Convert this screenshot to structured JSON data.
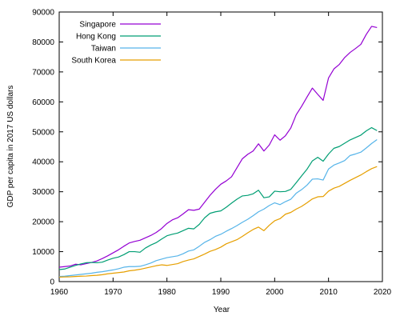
{
  "chart_data": {
    "type": "line",
    "title": "",
    "xlabel": "Year",
    "ylabel": "GDP per capita in 2017 US dollars",
    "xlim": [
      1960,
      2020
    ],
    "ylim": [
      0,
      90000
    ],
    "xticks": [
      1960,
      1970,
      1980,
      1990,
      2000,
      2010,
      2020
    ],
    "yticks": [
      0,
      10000,
      20000,
      30000,
      40000,
      50000,
      60000,
      70000,
      80000,
      90000
    ],
    "legend_position": "top-left",
    "grid": false,
    "series": [
      {
        "name": "Singapore",
        "color": "#9400d3",
        "points": [
          [
            1960,
            4800
          ],
          [
            1961,
            5000
          ],
          [
            1962,
            5200
          ],
          [
            1963,
            5800
          ],
          [
            1964,
            5600
          ],
          [
            1965,
            6000
          ],
          [
            1966,
            6400
          ],
          [
            1967,
            6900
          ],
          [
            1968,
            7700
          ],
          [
            1969,
            8600
          ],
          [
            1970,
            9600
          ],
          [
            1971,
            10600
          ],
          [
            1972,
            11800
          ],
          [
            1973,
            12900
          ],
          [
            1974,
            13400
          ],
          [
            1975,
            13800
          ],
          [
            1976,
            14600
          ],
          [
            1977,
            15400
          ],
          [
            1978,
            16400
          ],
          [
            1979,
            17700
          ],
          [
            1980,
            19400
          ],
          [
            1981,
            20600
          ],
          [
            1982,
            21300
          ],
          [
            1983,
            22600
          ],
          [
            1984,
            24000
          ],
          [
            1985,
            23800
          ],
          [
            1986,
            24200
          ],
          [
            1987,
            26500
          ],
          [
            1988,
            28800
          ],
          [
            1989,
            30800
          ],
          [
            1990,
            32500
          ],
          [
            1991,
            33600
          ],
          [
            1992,
            35000
          ],
          [
            1993,
            38000
          ],
          [
            1994,
            41000
          ],
          [
            1995,
            42500
          ],
          [
            1996,
            43600
          ],
          [
            1997,
            46000
          ],
          [
            1998,
            43600
          ],
          [
            1999,
            45600
          ],
          [
            2000,
            49000
          ],
          [
            2001,
            47200
          ],
          [
            2002,
            48700
          ],
          [
            2003,
            51300
          ],
          [
            2004,
            55700
          ],
          [
            2005,
            58500
          ],
          [
            2006,
            61600
          ],
          [
            2007,
            64600
          ],
          [
            2008,
            62500
          ],
          [
            2009,
            60500
          ],
          [
            2010,
            68000
          ],
          [
            2011,
            71000
          ],
          [
            2012,
            72500
          ],
          [
            2013,
            74800
          ],
          [
            2014,
            76500
          ],
          [
            2015,
            77800
          ],
          [
            2016,
            79200
          ],
          [
            2017,
            82500
          ],
          [
            2018,
            85200
          ],
          [
            2019,
            84800
          ]
        ]
      },
      {
        "name": "Hong Kong",
        "color": "#009e73",
        "points": [
          [
            1960,
            4000
          ],
          [
            1961,
            4200
          ],
          [
            1962,
            4800
          ],
          [
            1963,
            5400
          ],
          [
            1964,
            5900
          ],
          [
            1965,
            6300
          ],
          [
            1966,
            6400
          ],
          [
            1967,
            6300
          ],
          [
            1968,
            6500
          ],
          [
            1969,
            7200
          ],
          [
            1970,
            7800
          ],
          [
            1971,
            8200
          ],
          [
            1972,
            9000
          ],
          [
            1973,
            10000
          ],
          [
            1974,
            10000
          ],
          [
            1975,
            9800
          ],
          [
            1976,
            11200
          ],
          [
            1977,
            12200
          ],
          [
            1978,
            13000
          ],
          [
            1979,
            14200
          ],
          [
            1980,
            15300
          ],
          [
            1981,
            15800
          ],
          [
            1982,
            16200
          ],
          [
            1983,
            17000
          ],
          [
            1984,
            17800
          ],
          [
            1985,
            17600
          ],
          [
            1986,
            19100
          ],
          [
            1987,
            21300
          ],
          [
            1988,
            22800
          ],
          [
            1989,
            23300
          ],
          [
            1990,
            23600
          ],
          [
            1991,
            24800
          ],
          [
            1992,
            26200
          ],
          [
            1993,
            27500
          ],
          [
            1994,
            28600
          ],
          [
            1995,
            28800
          ],
          [
            1996,
            29300
          ],
          [
            1997,
            30500
          ],
          [
            1998,
            28000
          ],
          [
            1999,
            28300
          ],
          [
            2000,
            30200
          ],
          [
            2001,
            30000
          ],
          [
            2002,
            30100
          ],
          [
            2003,
            30800
          ],
          [
            2004,
            33000
          ],
          [
            2005,
            35300
          ],
          [
            2006,
            37500
          ],
          [
            2007,
            40300
          ],
          [
            2008,
            41500
          ],
          [
            2009,
            40200
          ],
          [
            2010,
            42600
          ],
          [
            2011,
            44500
          ],
          [
            2012,
            45100
          ],
          [
            2013,
            46200
          ],
          [
            2014,
            47300
          ],
          [
            2015,
            48100
          ],
          [
            2016,
            48900
          ],
          [
            2017,
            50300
          ],
          [
            2018,
            51400
          ],
          [
            2019,
            50400
          ]
        ]
      },
      {
        "name": "Taiwan",
        "color": "#56b4e9",
        "points": [
          [
            1960,
            1700
          ],
          [
            1961,
            1800
          ],
          [
            1962,
            2000
          ],
          [
            1963,
            2200
          ],
          [
            1964,
            2400
          ],
          [
            1965,
            2600
          ],
          [
            1966,
            2800
          ],
          [
            1967,
            3100
          ],
          [
            1968,
            3300
          ],
          [
            1969,
            3600
          ],
          [
            1970,
            3900
          ],
          [
            1971,
            4300
          ],
          [
            1972,
            4800
          ],
          [
            1973,
            5000
          ],
          [
            1974,
            5000
          ],
          [
            1975,
            5100
          ],
          [
            1976,
            5600
          ],
          [
            1977,
            6200
          ],
          [
            1978,
            7000
          ],
          [
            1979,
            7500
          ],
          [
            1980,
            8000
          ],
          [
            1981,
            8300
          ],
          [
            1982,
            8600
          ],
          [
            1983,
            9300
          ],
          [
            1984,
            10200
          ],
          [
            1985,
            10600
          ],
          [
            1986,
            11800
          ],
          [
            1987,
            13100
          ],
          [
            1988,
            14000
          ],
          [
            1989,
            15100
          ],
          [
            1990,
            15800
          ],
          [
            1991,
            16800
          ],
          [
            1992,
            17700
          ],
          [
            1993,
            18700
          ],
          [
            1994,
            19800
          ],
          [
            1995,
            20800
          ],
          [
            1996,
            22000
          ],
          [
            1997,
            23300
          ],
          [
            1998,
            24200
          ],
          [
            1999,
            25400
          ],
          [
            2000,
            26300
          ],
          [
            2001,
            25700
          ],
          [
            2002,
            26700
          ],
          [
            2003,
            27500
          ],
          [
            2004,
            29500
          ],
          [
            2005,
            30700
          ],
          [
            2006,
            32200
          ],
          [
            2007,
            34200
          ],
          [
            2008,
            34300
          ],
          [
            2009,
            33900
          ],
          [
            2010,
            37600
          ],
          [
            2011,
            38900
          ],
          [
            2012,
            39600
          ],
          [
            2013,
            40400
          ],
          [
            2014,
            42100
          ],
          [
            2015,
            42600
          ],
          [
            2016,
            43200
          ],
          [
            2017,
            44600
          ],
          [
            2018,
            46100
          ],
          [
            2019,
            47400
          ]
        ]
      },
      {
        "name": "South Korea",
        "color": "#e69f00",
        "points": [
          [
            1960,
            1500
          ],
          [
            1961,
            1550
          ],
          [
            1962,
            1600
          ],
          [
            1963,
            1700
          ],
          [
            1964,
            1800
          ],
          [
            1965,
            1850
          ],
          [
            1966,
            2000
          ],
          [
            1967,
            2100
          ],
          [
            1968,
            2300
          ],
          [
            1969,
            2600
          ],
          [
            1970,
            2800
          ],
          [
            1971,
            3000
          ],
          [
            1972,
            3200
          ],
          [
            1973,
            3600
          ],
          [
            1974,
            3800
          ],
          [
            1975,
            4100
          ],
          [
            1976,
            4500
          ],
          [
            1977,
            4900
          ],
          [
            1978,
            5300
          ],
          [
            1979,
            5600
          ],
          [
            1980,
            5400
          ],
          [
            1981,
            5700
          ],
          [
            1982,
            6000
          ],
          [
            1983,
            6700
          ],
          [
            1984,
            7200
          ],
          [
            1985,
            7600
          ],
          [
            1986,
            8400
          ],
          [
            1987,
            9200
          ],
          [
            1988,
            10100
          ],
          [
            1989,
            10700
          ],
          [
            1990,
            11500
          ],
          [
            1991,
            12600
          ],
          [
            1992,
            13300
          ],
          [
            1993,
            14000
          ],
          [
            1994,
            15100
          ],
          [
            1995,
            16300
          ],
          [
            1996,
            17400
          ],
          [
            1997,
            18200
          ],
          [
            1998,
            17000
          ],
          [
            1999,
            18800
          ],
          [
            2000,
            20300
          ],
          [
            2001,
            21000
          ],
          [
            2002,
            22500
          ],
          [
            2003,
            23100
          ],
          [
            2004,
            24200
          ],
          [
            2005,
            25100
          ],
          [
            2006,
            26300
          ],
          [
            2007,
            27600
          ],
          [
            2008,
            28300
          ],
          [
            2009,
            28400
          ],
          [
            2010,
            30200
          ],
          [
            2011,
            31200
          ],
          [
            2012,
            31800
          ],
          [
            2013,
            32800
          ],
          [
            2014,
            33800
          ],
          [
            2015,
            34700
          ],
          [
            2016,
            35600
          ],
          [
            2017,
            36700
          ],
          [
            2018,
            37700
          ],
          [
            2019,
            38400
          ]
        ]
      }
    ]
  }
}
